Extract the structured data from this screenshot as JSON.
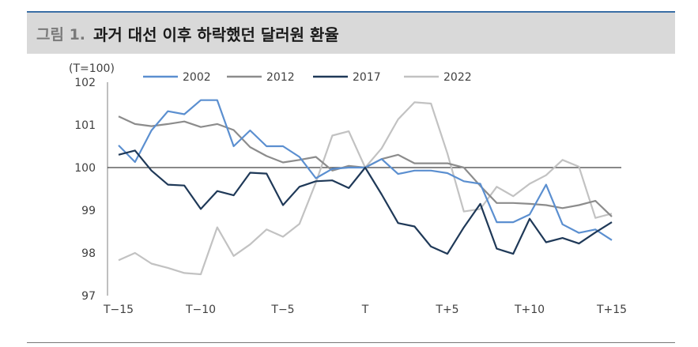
{
  "figure": {
    "label": "그림 1.",
    "title": "과거 대선 이후 하락했던 달러원 환율"
  },
  "chart_data": {
    "type": "line",
    "unit_label": "(T=100)",
    "x": [
      -15,
      -14,
      -13,
      -12,
      -11,
      -10,
      -9,
      -8,
      -7,
      -6,
      -5,
      -4,
      -3,
      -2,
      -1,
      0,
      1,
      2,
      3,
      4,
      5,
      6,
      7,
      8,
      9,
      10,
      11,
      12,
      13,
      14,
      15
    ],
    "x_tick_labels": [
      {
        "x": -15,
        "label": "T−15"
      },
      {
        "x": -10,
        "label": "T−10"
      },
      {
        "x": -5,
        "label": "T−5"
      },
      {
        "x": 0,
        "label": "T"
      },
      {
        "x": 5,
        "label": "T+5"
      },
      {
        "x": 10,
        "label": "T+10"
      },
      {
        "x": 15,
        "label": "T+15"
      }
    ],
    "xlim": [
      -15,
      15
    ],
    "ylim": [
      97,
      102
    ],
    "y_ticks": [
      97,
      98,
      99,
      100,
      101,
      102
    ],
    "baseline": 100,
    "legend_position": "top",
    "series": [
      {
        "name": "2002",
        "color": "#5b8fd0",
        "values": [
          100.52,
          100.13,
          100.87,
          101.32,
          101.25,
          101.58,
          101.58,
          100.5,
          100.87,
          100.5,
          100.5,
          100.25,
          99.75,
          99.97,
          100.0,
          100.0,
          100.2,
          99.85,
          99.93,
          99.93,
          99.87,
          99.68,
          99.62,
          98.72,
          98.72,
          98.9,
          99.6,
          98.67,
          98.47,
          98.55,
          98.3
        ]
      },
      {
        "name": "2012",
        "color": "#8c8c8c",
        "values": [
          101.2,
          101.02,
          100.97,
          101.02,
          101.08,
          100.95,
          101.02,
          100.88,
          100.48,
          100.27,
          100.12,
          100.18,
          100.25,
          99.93,
          100.04,
          100.0,
          100.2,
          100.3,
          100.1,
          100.1,
          100.1,
          100.0,
          99.57,
          99.17,
          99.17,
          99.15,
          99.12,
          99.05,
          99.12,
          99.22,
          98.85
        ]
      },
      {
        "name": "2017",
        "color": "#1f3958",
        "values": [
          100.3,
          100.4,
          99.93,
          99.6,
          99.58,
          99.03,
          99.45,
          99.35,
          99.88,
          99.86,
          99.12,
          99.55,
          99.68,
          99.7,
          99.52,
          100.0,
          99.37,
          98.7,
          98.62,
          98.15,
          97.98,
          98.6,
          99.15,
          98.1,
          97.98,
          98.8,
          98.25,
          98.35,
          98.22,
          98.48,
          98.72
        ]
      },
      {
        "name": "2022",
        "color": "#c2c2c2",
        "values": [
          97.83,
          98.0,
          97.75,
          97.65,
          97.53,
          97.5,
          98.6,
          97.93,
          98.2,
          98.55,
          98.38,
          98.68,
          99.65,
          100.75,
          100.85,
          100.0,
          100.45,
          101.13,
          101.53,
          101.5,
          100.33,
          98.97,
          99.03,
          99.55,
          99.33,
          99.62,
          99.82,
          100.18,
          100.02,
          98.82,
          98.92
        ]
      }
    ]
  }
}
